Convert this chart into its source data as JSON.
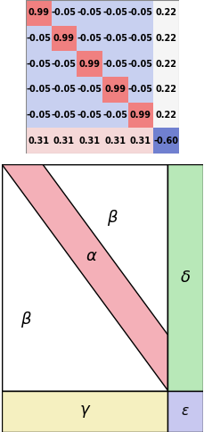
{
  "matrix": [
    [
      0.99,
      -0.05,
      -0.05,
      -0.05,
      -0.05,
      0.22
    ],
    [
      -0.05,
      0.99,
      -0.05,
      -0.05,
      -0.05,
      0.22
    ],
    [
      -0.05,
      -0.05,
      0.99,
      -0.05,
      -0.05,
      0.22
    ],
    [
      -0.05,
      -0.05,
      -0.05,
      0.99,
      -0.05,
      0.22
    ],
    [
      -0.05,
      -0.05,
      -0.05,
      -0.05,
      0.99,
      0.22
    ],
    [
      0.31,
      0.31,
      0.31,
      0.31,
      0.31,
      -0.6
    ]
  ],
  "cell_colors": [
    [
      "#f08080",
      "#c8d0f0",
      "#c8d0f0",
      "#c8d0f0",
      "#c8d0f0",
      "#f5f5f5"
    ],
    [
      "#c8d0f0",
      "#f08080",
      "#c8d0f0",
      "#c8d0f0",
      "#c8d0f0",
      "#f5f5f5"
    ],
    [
      "#c8d0f0",
      "#c8d0f0",
      "#f08080",
      "#c8d0f0",
      "#c8d0f0",
      "#f5f5f5"
    ],
    [
      "#c8d0f0",
      "#c8d0f0",
      "#c8d0f0",
      "#f08080",
      "#c8d0f0",
      "#f5f5f5"
    ],
    [
      "#c8d0f0",
      "#c8d0f0",
      "#c8d0f0",
      "#c8d0f0",
      "#f08080",
      "#f5f5f5"
    ],
    [
      "#f5d8d8",
      "#f5d8d8",
      "#f5d8d8",
      "#f5d8d8",
      "#f5d8d8",
      "#7080d0"
    ]
  ],
  "cell_text_size": 7.0,
  "alpha_color": "#f4b0b8",
  "beta_color": "#ffffff",
  "gamma_color": "#f5f0c0",
  "delta_color": "#b8e8b8",
  "epsilon_color": "#c8c8f0",
  "border_color": "#000000",
  "heatmap_border": "#aaaaaa"
}
